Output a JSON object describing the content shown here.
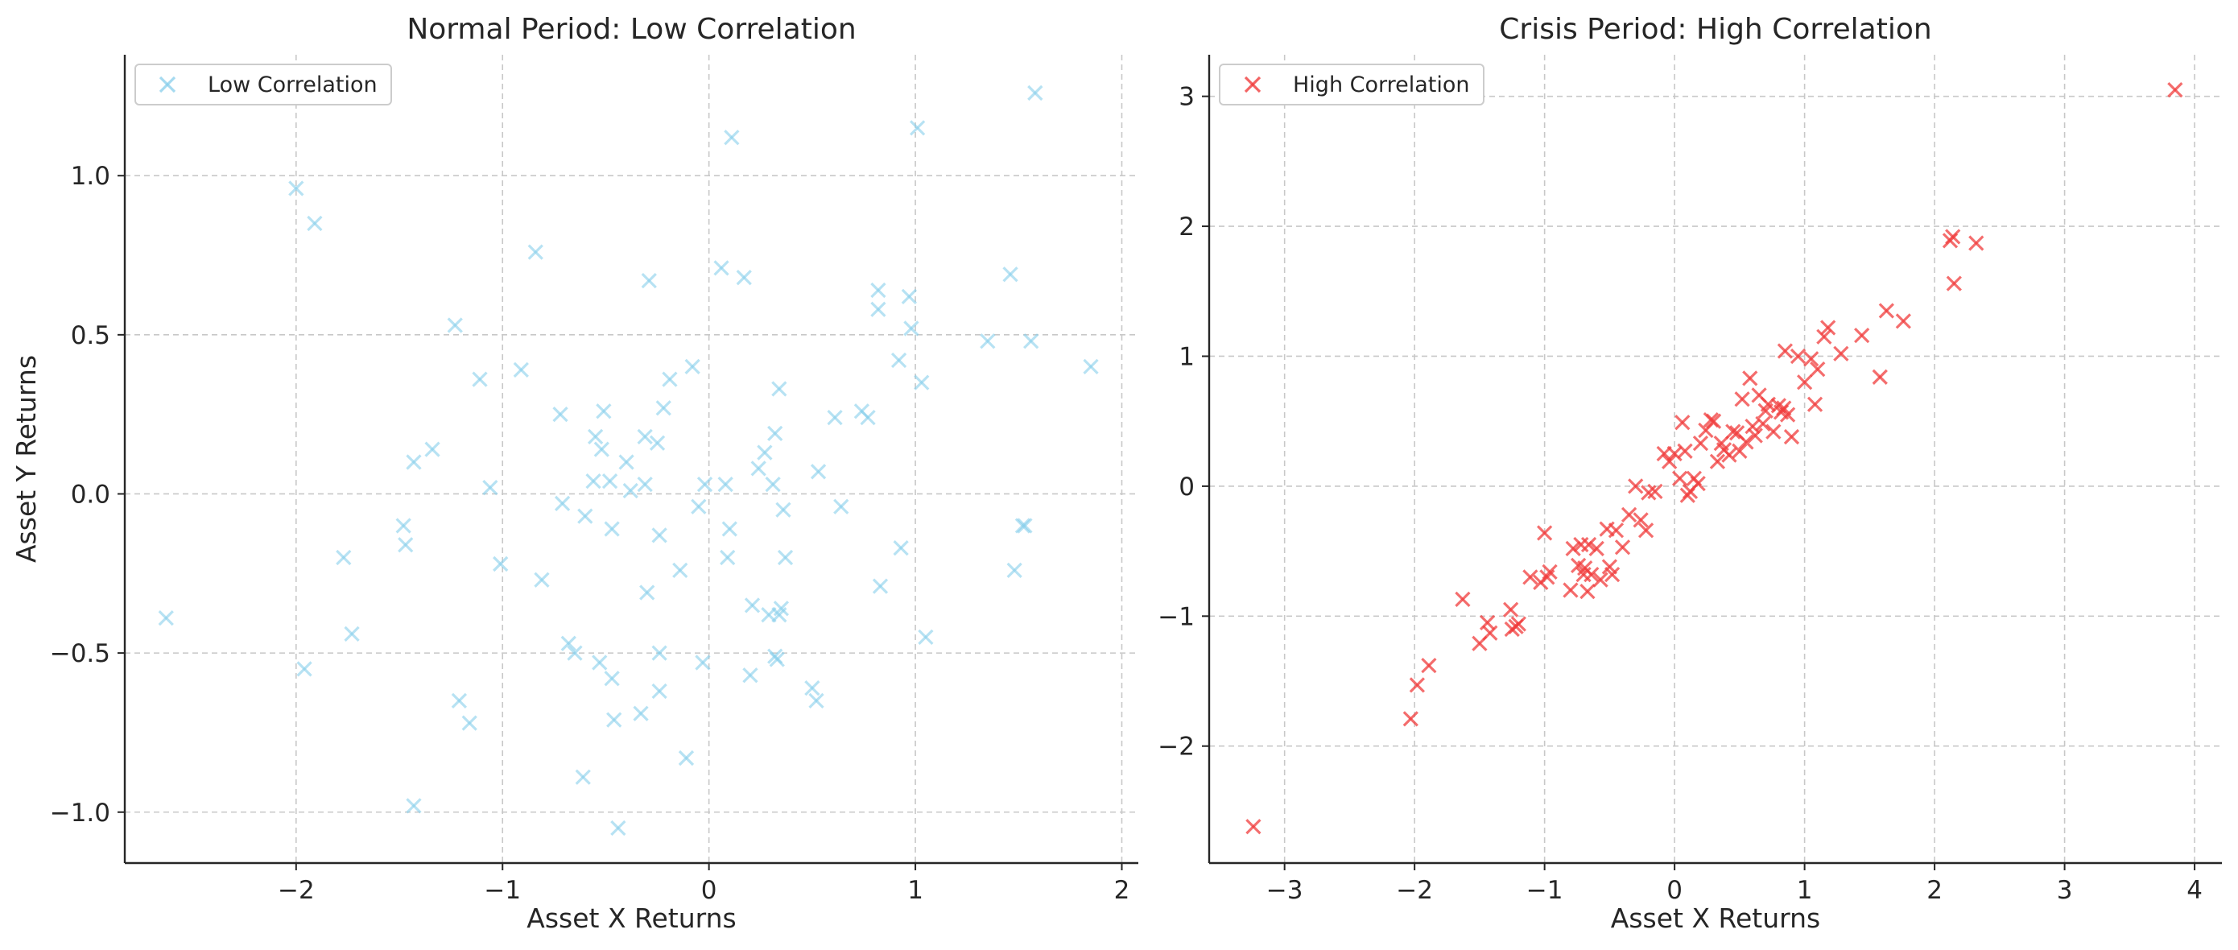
{
  "chart_data": [
    {
      "type": "scatter",
      "title": "Normal Period: Low Correlation",
      "xlabel": "Asset X Returns",
      "ylabel": "Asset Y Returns",
      "xlim": [
        -2.83,
        2.08
      ],
      "ylim": [
        -1.16,
        1.38
      ],
      "xticks": [
        -2,
        -1,
        0,
        1,
        2
      ],
      "xtick_labels": [
        "−2",
        "−1",
        "0",
        "1",
        "2"
      ],
      "yticks": [
        -1.0,
        -0.5,
        0.0,
        0.5,
        1.0
      ],
      "ytick_labels": [
        "−1.0",
        "−0.5",
        "0.0",
        "0.5",
        "1.0"
      ],
      "grid": true,
      "legend_position": "top-left",
      "marker": "x",
      "series": [
        {
          "name": "Low Correlation",
          "color": "#87ceeb",
          "x": [
            -2.63,
            -2.0,
            -1.91,
            -1.96,
            -1.77,
            -1.73,
            -1.48,
            -1.47,
            -1.43,
            -1.43,
            -1.34,
            -1.23,
            -1.21,
            -1.16,
            -1.11,
            -1.06,
            -1.01,
            -0.91,
            -0.84,
            -0.81,
            -0.72,
            -0.71,
            -0.68,
            -0.65,
            -0.61,
            -0.6,
            -0.56,
            -0.55,
            -0.53,
            -0.52,
            -0.51,
            -0.48,
            -0.47,
            -0.47,
            -0.46,
            -0.44,
            -0.4,
            -0.38,
            -0.33,
            -0.31,
            -0.31,
            -0.3,
            -0.29,
            -0.25,
            -0.24,
            -0.24,
            -0.24,
            -0.22,
            -0.19,
            -0.14,
            -0.11,
            -0.08,
            -0.05,
            -0.03,
            -0.02,
            0.06,
            0.08,
            0.09,
            0.1,
            0.11,
            0.17,
            0.2,
            0.21,
            0.24,
            0.27,
            0.29,
            0.31,
            0.32,
            0.32,
            0.33,
            0.34,
            0.34,
            0.35,
            0.36,
            0.37,
            0.5,
            0.52,
            0.53,
            0.61,
            0.64,
            0.74,
            0.77,
            0.82,
            0.82,
            0.83,
            0.92,
            0.93,
            0.97,
            0.98,
            1.01,
            1.03,
            1.05,
            1.35,
            1.46,
            1.48,
            1.52,
            1.53,
            1.56,
            1.58,
            1.85
          ],
          "y": [
            -0.39,
            0.96,
            0.85,
            -0.55,
            -0.2,
            -0.44,
            -0.1,
            -0.16,
            -0.98,
            0.1,
            0.14,
            0.53,
            -0.65,
            -0.72,
            0.36,
            0.02,
            -0.22,
            0.39,
            0.76,
            -0.27,
            0.25,
            -0.03,
            -0.47,
            -0.5,
            -0.89,
            -0.07,
            0.04,
            0.18,
            -0.53,
            0.14,
            0.26,
            0.04,
            -0.11,
            -0.58,
            -0.71,
            -1.05,
            0.1,
            0.01,
            -0.69,
            0.18,
            0.03,
            -0.31,
            0.67,
            0.16,
            -0.13,
            -0.5,
            -0.62,
            0.27,
            0.36,
            -0.24,
            -0.83,
            0.4,
            -0.04,
            -0.53,
            0.03,
            0.71,
            0.03,
            -0.2,
            -0.11,
            1.12,
            0.68,
            -0.57,
            -0.35,
            0.08,
            0.13,
            -0.38,
            0.03,
            -0.51,
            0.19,
            -0.52,
            0.33,
            -0.38,
            -0.36,
            -0.05,
            -0.2,
            -0.61,
            -0.65,
            0.07,
            0.24,
            -0.04,
            0.26,
            0.24,
            0.64,
            0.58,
            -0.29,
            0.42,
            -0.17,
            0.62,
            0.52,
            1.15,
            0.35,
            -0.45,
            0.48,
            0.69,
            -0.24,
            -0.1,
            -0.1,
            0.48,
            1.26,
            0.4
          ]
        }
      ]
    },
    {
      "type": "scatter",
      "title": "Crisis Period: High Correlation",
      "xlabel": "Asset X Returns",
      "ylabel": "",
      "xlim": [
        -3.58,
        4.21
      ],
      "ylim": [
        -2.9,
        3.32
      ],
      "xticks": [
        -3,
        -2,
        -1,
        0,
        1,
        2,
        3,
        4
      ],
      "xtick_labels": [
        "−3",
        "−2",
        "−1",
        "0",
        "1",
        "2",
        "3",
        "4"
      ],
      "yticks": [
        -2,
        -1,
        0,
        1,
        2,
        3
      ],
      "ytick_labels": [
        "−2",
        "−1",
        "0",
        "1",
        "2",
        "3"
      ],
      "grid": true,
      "legend_position": "top-left",
      "marker": "x",
      "series": [
        {
          "name": "High Correlation",
          "color": "#f03c3c",
          "x": [
            -3.24,
            -2.03,
            -1.98,
            -1.89,
            -1.63,
            -1.5,
            -1.44,
            -1.42,
            -1.26,
            -1.25,
            -1.22,
            -1.2,
            -1.11,
            -1.03,
            -1.0,
            -0.98,
            -0.96,
            -0.8,
            -0.78,
            -0.74,
            -0.72,
            -0.7,
            -0.69,
            -0.67,
            -0.66,
            -0.64,
            -0.6,
            -0.57,
            -0.52,
            -0.5,
            -0.48,
            -0.45,
            -0.4,
            -0.35,
            -0.3,
            -0.26,
            -0.22,
            -0.2,
            -0.15,
            -0.08,
            -0.04,
            0.0,
            0.04,
            0.06,
            0.08,
            0.1,
            0.12,
            0.15,
            0.18,
            0.2,
            0.24,
            0.28,
            0.3,
            0.33,
            0.36,
            0.38,
            0.42,
            0.45,
            0.48,
            0.5,
            0.52,
            0.55,
            0.58,
            0.6,
            0.62,
            0.65,
            0.68,
            0.7,
            0.72,
            0.76,
            0.8,
            0.82,
            0.84,
            0.85,
            0.87,
            0.9,
            0.95,
            1.0,
            1.05,
            1.08,
            1.1,
            1.15,
            1.18,
            1.28,
            1.44,
            1.58,
            1.63,
            1.76,
            2.12,
            2.14,
            2.15,
            2.32,
            3.85
          ],
          "y": [
            -2.62,
            -1.79,
            -1.53,
            -1.38,
            -0.87,
            -1.21,
            -1.05,
            -1.13,
            -0.95,
            -1.1,
            -1.08,
            -1.06,
            -0.7,
            -0.74,
            -0.36,
            -0.7,
            -0.66,
            -0.8,
            -0.48,
            -0.61,
            -0.45,
            -0.68,
            -0.63,
            -0.81,
            -0.45,
            -0.68,
            -0.48,
            -0.72,
            -0.33,
            -0.62,
            -0.68,
            -0.34,
            -0.47,
            -0.22,
            0.0,
            -0.26,
            -0.34,
            -0.05,
            -0.04,
            0.25,
            0.19,
            0.25,
            0.06,
            0.49,
            0.27,
            -0.07,
            -0.04,
            0.06,
            0.02,
            0.33,
            0.43,
            0.51,
            0.5,
            0.19,
            0.33,
            0.28,
            0.24,
            0.42,
            0.41,
            0.27,
            0.67,
            0.34,
            0.83,
            0.46,
            0.39,
            0.7,
            0.48,
            0.58,
            0.63,
            0.42,
            0.62,
            0.57,
            0.6,
            1.04,
            0.55,
            0.38,
            1.0,
            0.8,
            0.98,
            0.63,
            0.9,
            1.15,
            1.22,
            1.02,
            1.16,
            0.84,
            1.35,
            1.27,
            1.89,
            1.92,
            1.56,
            1.87,
            3.05
          ]
        }
      ]
    }
  ]
}
